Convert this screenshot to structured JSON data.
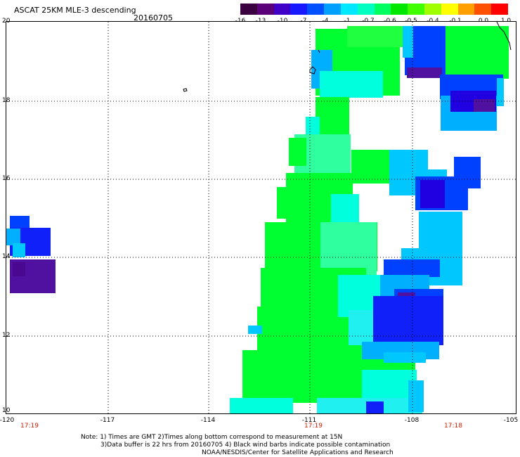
{
  "header": {
    "title": "ASCAT 25KM MLE-3 descending",
    "date": "20160705"
  },
  "colorbar": {
    "colors": [
      "#3a0040",
      "#5a0078",
      "#4000c8",
      "#1818ff",
      "#0050ff",
      "#00a0ff",
      "#00e8ff",
      "#00ffc0",
      "#00ff60",
      "#00e800",
      "#40ff00",
      "#a0ff00",
      "#ffff00",
      "#ffa000",
      "#ff5000",
      "#ff0000"
    ],
    "ticks": [
      "-16",
      "-13",
      "-10",
      "-7",
      "-4",
      "-1",
      "-0.7",
      "-0.6",
      "-0.5",
      "-0.4",
      "-0.1",
      "0.0",
      "1.0"
    ]
  },
  "axes": {
    "lat_labels": [
      "20",
      "18",
      "16",
      "14",
      "12",
      "10"
    ],
    "lon_labels": [
      "-120",
      "-117",
      "-114",
      "-111",
      "-108",
      "-105"
    ]
  },
  "times": [
    "17:19",
    "17:19",
    "17:18"
  ],
  "notes": {
    "line1": "Note: 1) Times are GMT 2)Times along bottom correspond to measurement at 15N",
    "line2": "3)Data buffer is 22 hrs from 20160705 4) Black wind barbs indicate possible contamination",
    "line3": "NOAA/NESDIS/Center for Satellite Applications and Research"
  }
}
